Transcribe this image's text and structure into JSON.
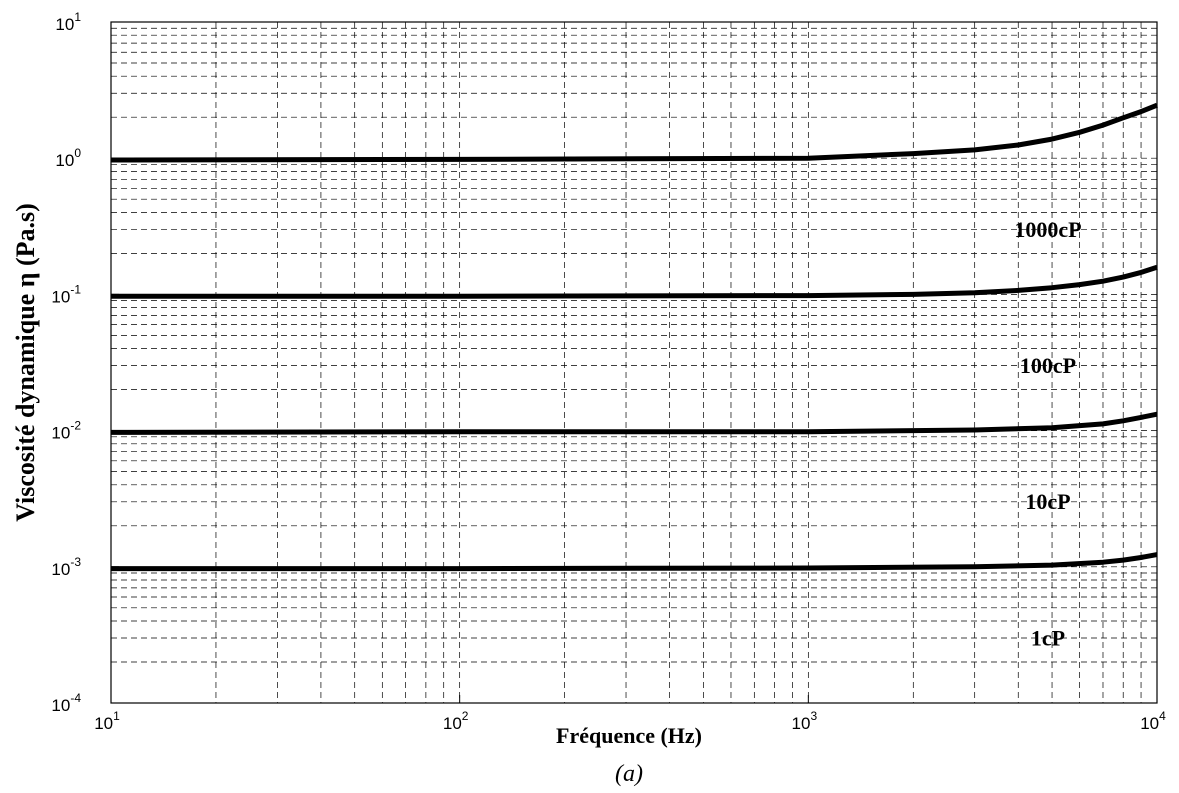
{
  "chart_data": {
    "type": "line",
    "xlabel": "Fréquence (Hz)",
    "ylabel": "Viscosité dynamique η (Pa.s)",
    "x_scale": "log",
    "y_scale": "log",
    "xlim": [
      10,
      10000
    ],
    "ylim": [
      0.0001,
      10
    ],
    "grid": true,
    "grid_style": "dashed",
    "line_color": "#000000",
    "x_ticks": [
      {
        "value": 10,
        "base": "10",
        "exp": "1"
      },
      {
        "value": 100,
        "base": "10",
        "exp": "2"
      },
      {
        "value": 1000,
        "base": "10",
        "exp": "3"
      },
      {
        "value": 10000,
        "base": "10",
        "exp": "4"
      }
    ],
    "y_ticks": [
      {
        "value": 10,
        "base": "10",
        "exp": "1"
      },
      {
        "value": 1,
        "base": "10",
        "exp": "0"
      },
      {
        "value": 0.1,
        "base": "10",
        "exp": "-1"
      },
      {
        "value": 0.01,
        "base": "10",
        "exp": "-2"
      },
      {
        "value": 0.001,
        "base": "10",
        "exp": "-3"
      },
      {
        "value": 0.0001,
        "base": "10",
        "exp": "-4"
      }
    ],
    "series": [
      {
        "annotation": "1000cP",
        "x": [
          10,
          100,
          1000,
          2000,
          3000,
          4000,
          5000,
          6000,
          7000,
          8000,
          9000,
          10000
        ],
        "y": [
          0.97,
          0.98,
          1.0,
          1.08,
          1.15,
          1.25,
          1.38,
          1.55,
          1.75,
          1.98,
          2.2,
          2.45
        ]
      },
      {
        "annotation": "100cP",
        "x": [
          10,
          100,
          1000,
          2000,
          3000,
          4000,
          5000,
          6000,
          7000,
          8000,
          9000,
          10000
        ],
        "y": [
          0.097,
          0.097,
          0.098,
          0.1,
          0.103,
          0.107,
          0.112,
          0.118,
          0.125,
          0.134,
          0.145,
          0.158
        ]
      },
      {
        "annotation": "10cP",
        "x": [
          10,
          100,
          1000,
          3000,
          5000,
          7000,
          8000,
          9000,
          10000
        ],
        "y": [
          0.0097,
          0.0098,
          0.0098,
          0.0101,
          0.0105,
          0.0112,
          0.0118,
          0.0125,
          0.0132
        ]
      },
      {
        "annotation": "1cP",
        "x": [
          10,
          100,
          1000,
          3000,
          5000,
          7000,
          8000,
          9000,
          10000
        ],
        "y": [
          0.00097,
          0.00097,
          0.00098,
          0.001,
          0.00103,
          0.00108,
          0.00112,
          0.00117,
          0.00123
        ]
      }
    ]
  },
  "caption": "(a)"
}
